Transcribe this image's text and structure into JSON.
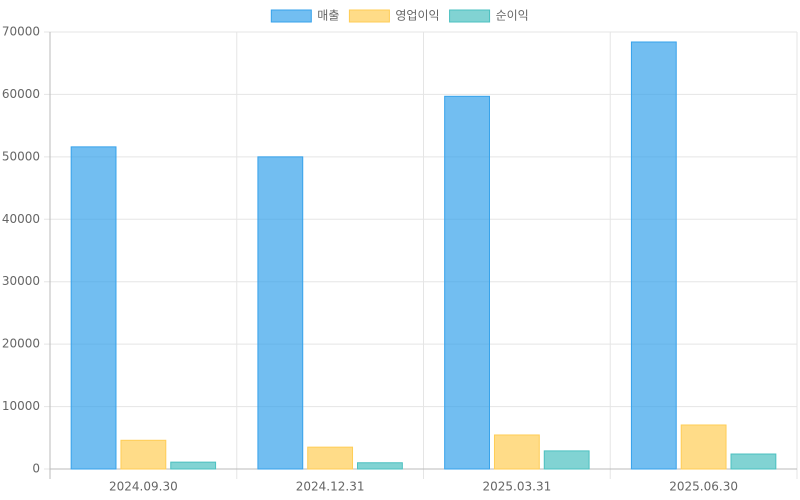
{
  "chart_data": {
    "type": "bar",
    "categories": [
      "2024.09.30",
      "2024.12.31",
      "2025.03.31",
      "2025.06.30"
    ],
    "series": [
      {
        "name": "매출",
        "color": "#36a2eb",
        "values": [
          51600,
          50000,
          59700,
          68400
        ]
      },
      {
        "name": "영업이익",
        "color": "#ffcd56",
        "values": [
          4600,
          3500,
          5450,
          7050
        ]
      },
      {
        "name": "순이익",
        "color": "#4bc0c0",
        "values": [
          1100,
          1000,
          2900,
          2400
        ]
      }
    ],
    "ylim": [
      0,
      70000
    ],
    "yticks": [
      0,
      10000,
      20000,
      30000,
      40000,
      50000,
      60000,
      70000
    ],
    "grid": true,
    "legend": "top"
  }
}
